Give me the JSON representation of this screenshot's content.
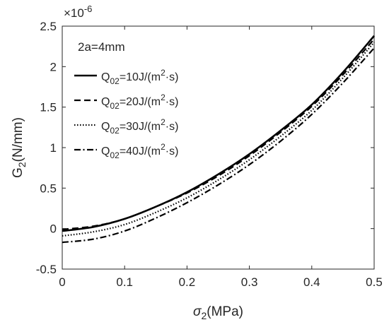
{
  "chart_data": {
    "type": "line",
    "xlabel": {
      "symbol": "σ",
      "sub": "2",
      "rest": "(MPa)"
    },
    "ylabel": {
      "symbol": "G",
      "sub": "2",
      "rest": "(N/mm)"
    },
    "xlim": [
      0,
      0.5
    ],
    "ylim": [
      -0.5,
      2.5
    ],
    "y_exponent_label": "×10",
    "y_exponent_power": "-6",
    "xticks": [
      0,
      0.1,
      0.2,
      0.3,
      0.4,
      0.5
    ],
    "xtick_labels": [
      "0",
      "0.1",
      "0.2",
      "0.3",
      "0.4",
      "0.5"
    ],
    "yticks": [
      -0.5,
      0,
      0.5,
      1,
      1.5,
      2,
      2.5
    ],
    "ytick_labels": [
      "-0.5",
      "0",
      "0.5",
      "1",
      "1.5",
      "2",
      "2.5"
    ],
    "grid": false,
    "legend_position": "top-left",
    "annotation": "2a=4mm",
    "x": [
      0,
      0.05,
      0.1,
      0.15,
      0.2,
      0.25,
      0.3,
      0.35,
      0.4,
      0.45,
      0.5
    ],
    "series": [
      {
        "name": {
          "pre": "Q",
          "sub": "02",
          "mid": "=10J/(m",
          "sup": "2",
          "post": "·s)"
        },
        "dash": "solid",
        "values": [
          -0.03,
          0.02,
          0.12,
          0.27,
          0.45,
          0.67,
          0.92,
          1.21,
          1.53,
          1.93,
          2.38
        ]
      },
      {
        "name": {
          "pre": "Q",
          "sub": "02",
          "mid": "=20J/(m",
          "sup": "2",
          "post": "·s)"
        },
        "dash": "dashed",
        "values": [
          -0.01,
          0.03,
          0.12,
          0.27,
          0.44,
          0.65,
          0.9,
          1.19,
          1.51,
          1.9,
          2.34
        ]
      },
      {
        "name": {
          "pre": "Q",
          "sub": "02",
          "mid": "=30J/(m",
          "sup": "2",
          "post": "·s)"
        },
        "dash": "dotted",
        "values": [
          -0.09,
          -0.04,
          0.05,
          0.2,
          0.38,
          0.6,
          0.85,
          1.14,
          1.46,
          1.86,
          2.3
        ]
      },
      {
        "name": {
          "pre": "Q",
          "sub": "02",
          "mid": "=40J/(m",
          "sup": "2",
          "post": "·s)"
        },
        "dash": "dashdot",
        "values": [
          -0.17,
          -0.13,
          -0.03,
          0.13,
          0.32,
          0.54,
          0.79,
          1.08,
          1.41,
          1.8,
          2.23
        ]
      }
    ]
  }
}
